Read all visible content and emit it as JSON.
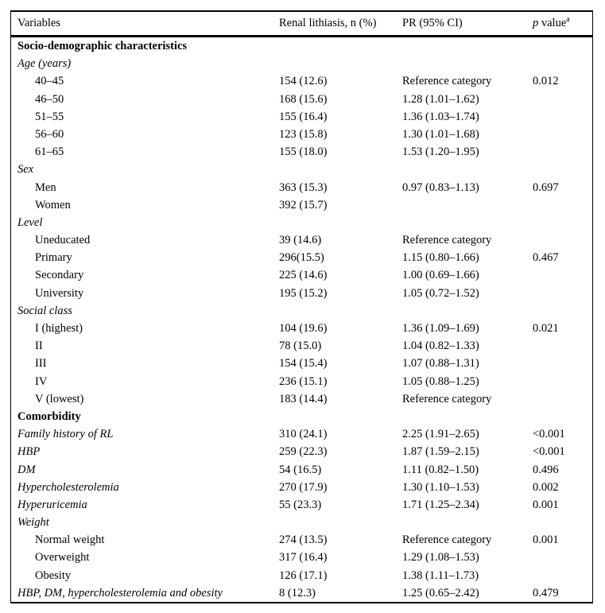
{
  "table": {
    "header": {
      "variables": "Variables",
      "renal_lithiasis": "Renal lithiasis, n (%)",
      "pr_ci": "PR (95% CI)",
      "p_label_italic": "p",
      "p_label_rest": " value",
      "p_footnote_marker": "a"
    },
    "rows": [
      {
        "type": "section",
        "label": "Socio-demographic characteristics",
        "n": "",
        "pr": "",
        "p": ""
      },
      {
        "type": "label",
        "label": "Age (years)",
        "n": "",
        "pr": "",
        "p": ""
      },
      {
        "type": "item",
        "label": "40–45",
        "n": "154 (12.6)",
        "pr": "Reference category",
        "p": "0.012"
      },
      {
        "type": "item",
        "label": "46–50",
        "n": "168 (15.6)",
        "pr": "1.28 (1.01–1.62)",
        "p": ""
      },
      {
        "type": "item",
        "label": "51–55",
        "n": "155 (16.4)",
        "pr": "1.36 (1.03–1.74)",
        "p": ""
      },
      {
        "type": "item",
        "label": "56–60",
        "n": "123 (15.8)",
        "pr": "1.30 (1.01–1.68)",
        "p": ""
      },
      {
        "type": "item",
        "label": "61–65",
        "n": "155 (18.0)",
        "pr": "1.53 (1.20–1.95)",
        "p": ""
      },
      {
        "type": "label",
        "label": "Sex",
        "n": "",
        "pr": "",
        "p": ""
      },
      {
        "type": "item",
        "label": "Men",
        "n": "363 (15.3)",
        "pr": "0.97 (0.83–1.13)",
        "p": "0.697"
      },
      {
        "type": "item",
        "label": "Women",
        "n": "392 (15.7)",
        "pr": "",
        "p": ""
      },
      {
        "type": "label",
        "label": "Level",
        "n": "",
        "pr": "",
        "p": ""
      },
      {
        "type": "item",
        "label": "Uneducated",
        "n": "39 (14.6)",
        "pr": "Reference category",
        "p": ""
      },
      {
        "type": "item",
        "label": "Primary",
        "n": "296(15.5)",
        "pr": "1.15 (0.80–1.66)",
        "p": "0.467"
      },
      {
        "type": "item",
        "label": "Secondary",
        "n": "225 (14.6)",
        "pr": "1.00 (0.69–1.66)",
        "p": ""
      },
      {
        "type": "item",
        "label": "University",
        "n": "195 (15.2)",
        "pr": "1.05 (0.72–1.52)",
        "p": ""
      },
      {
        "type": "label",
        "label": "Social class",
        "n": "",
        "pr": "",
        "p": ""
      },
      {
        "type": "item",
        "label": "I (highest)",
        "n": "104 (19.6)",
        "pr": "1.36 (1.09–1.69)",
        "p": "0.021"
      },
      {
        "type": "item",
        "label": "II",
        "n": "78 (15.0)",
        "pr": "1.04 (0.82–1.33)",
        "p": ""
      },
      {
        "type": "item",
        "label": "III",
        "n": "154 (15.4)",
        "pr": "1.07 (0.88–1.31)",
        "p": ""
      },
      {
        "type": "item",
        "label": "IV",
        "n": "236 (15.1)",
        "pr": "1.05 (0.88–1.25)",
        "p": ""
      },
      {
        "type": "item",
        "label": "V (lowest)",
        "n": "183 (14.4)",
        "pr": "Reference category",
        "p": ""
      },
      {
        "type": "section",
        "label": "Comorbidity",
        "n": "",
        "pr": "",
        "p": ""
      },
      {
        "type": "italic",
        "label": "Family history of RL",
        "n": "310 (24.1)",
        "pr": "2.25 (1.91–2.65)",
        "p": "<0.001"
      },
      {
        "type": "italic",
        "label": "HBP",
        "n": "259 (22.3)",
        "pr": "1.87 (1.59–2.15)",
        "p": "<0.001"
      },
      {
        "type": "italic",
        "label": "DM",
        "n": "54 (16.5)",
        "pr": "1.11 (0.82–1.50)",
        "p": "0.496"
      },
      {
        "type": "italic",
        "label": "Hypercholesterolemia",
        "n": "270 (17.9)",
        "pr": "1.30 (1.10–1.53)",
        "p": "0.002"
      },
      {
        "type": "italic",
        "label": "Hyperuricemia",
        "n": "55 (23.3)",
        "pr": "1.71 (1.25–2.34)",
        "p": "0.001"
      },
      {
        "type": "label",
        "label": "Weight",
        "n": "",
        "pr": "",
        "p": ""
      },
      {
        "type": "item",
        "label": "Normal weight",
        "n": "274 (13.5)",
        "pr": "Reference category",
        "p": "0.001"
      },
      {
        "type": "item",
        "label": "Overweight",
        "n": "317 (16.4)",
        "pr": "1.29 (1.08–1.53)",
        "p": ""
      },
      {
        "type": "item",
        "label": "Obesity",
        "n": "126 (17.1)",
        "pr": "1.38 (1.11–1.73)",
        "p": ""
      },
      {
        "type": "italic",
        "label": "HBP, DM, hypercholesterolemia and obesity",
        "n": "8 (12.3)",
        "pr": "1.25 (0.65–2.42)",
        "p": "0.479"
      }
    ]
  }
}
